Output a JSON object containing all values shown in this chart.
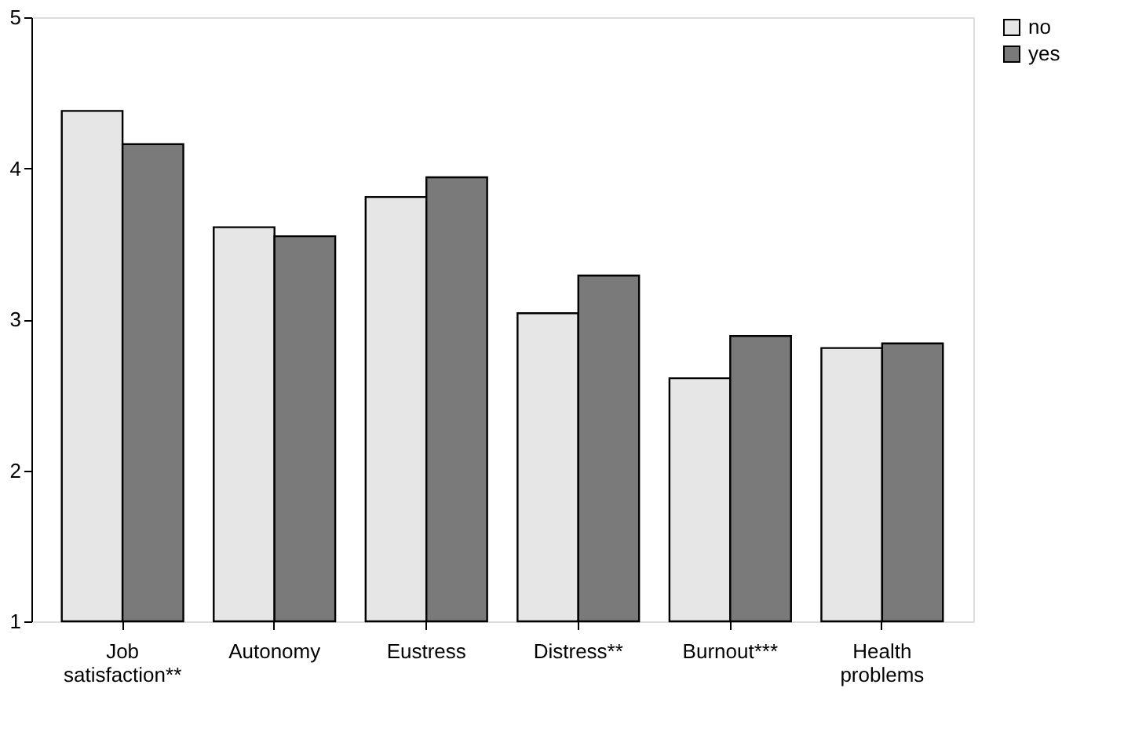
{
  "chart_data": {
    "type": "bar",
    "categories": [
      "Job satisfaction**",
      "Autonomy",
      "Eustress",
      "Distress**",
      "Burnout***",
      "Health problems"
    ],
    "series": [
      {
        "name": "no",
        "color": "#e6e6e6",
        "values": [
          4.38,
          3.61,
          3.81,
          3.04,
          2.61,
          2.81
        ]
      },
      {
        "name": "yes",
        "color": "#7a7a7a",
        "values": [
          4.16,
          3.55,
          3.94,
          3.29,
          2.89,
          2.84
        ]
      }
    ],
    "ylim": [
      1,
      5
    ],
    "yticks": [
      1,
      2,
      3,
      4,
      5
    ],
    "grid": false,
    "legend": "right"
  }
}
